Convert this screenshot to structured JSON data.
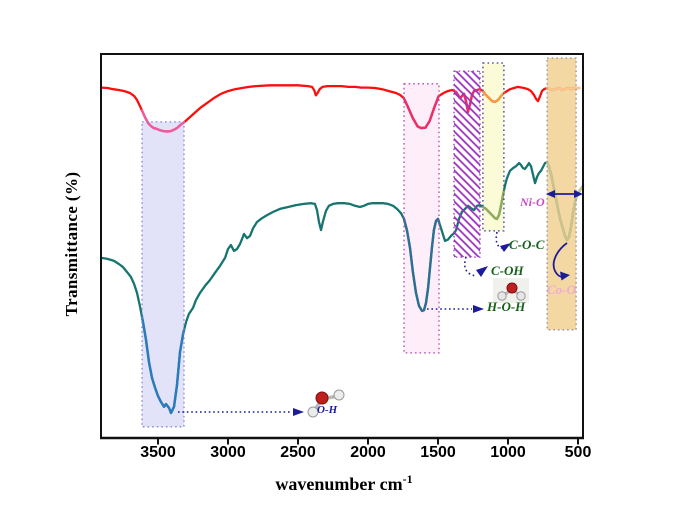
{
  "figure": {
    "ylabel": "Transmittance (%)",
    "xlabel_main": "wavenumber cm",
    "xlabel_sup": "-1"
  },
  "colors": {
    "red_spectrum": "#fb0e0e",
    "teal_spectrum": "#177570",
    "arrow_navy": "#1c1c99",
    "label_green": "#17611c",
    "label_magenta": "#cb4ac9",
    "label_pale_pink": "#f0abd0"
  },
  "chart_data": {
    "type": "line",
    "title": "",
    "xlabel": "wavenumber cm-1",
    "ylabel": "Transmittance (%)",
    "x_axis_reversed": true,
    "grid": false,
    "legend": "none",
    "x_ticks": [
      3500,
      3000,
      2500,
      2000,
      1500,
      1000,
      500
    ],
    "xlim": [
      3910,
      460
    ],
    "ylim": [
      0,
      100
    ],
    "bands": [
      {
        "name": "O-H stretch",
        "from": 3614,
        "to": 3314,
        "t_top": 82.1,
        "t_bottom": 2.9,
        "fill": "#e2e3f8",
        "border": "#8585d0",
        "hatch": false
      },
      {
        "name": "H-O-H bend",
        "from": 1743,
        "to": 1493,
        "t_top": 92.0,
        "t_bottom": 22.1,
        "fill": "#fdeefa",
        "border": "#b04ab0",
        "hatch": false
      },
      {
        "name": "C-OH",
        "from": 1386,
        "to": 1200,
        "t_top": 95.3,
        "t_bottom": 47.0,
        "fill": "#ffffff",
        "border": "#9933bb",
        "hatch": true
      },
      {
        "name": "C-O-C",
        "from": 1179,
        "to": 1029,
        "t_top": 97.4,
        "t_bottom": 53.8,
        "fill": "#fbfbd8",
        "border": "#3b3b9e",
        "hatch": false
      },
      {
        "name": "metal-O",
        "from": 721,
        "to": 514,
        "t_top": 98.7,
        "t_bottom": 28.1,
        "fill": "#f3d8a3",
        "border": "#8f8fa3",
        "hatch": false
      }
    ],
    "series": [
      {
        "name": "red_spectrum",
        "color": "#fb0e0e",
        "points": [
          [
            3907,
            91
          ],
          [
            3860,
            90.9
          ],
          [
            3820,
            90.6
          ],
          [
            3780,
            90.4
          ],
          [
            3740,
            90.1
          ],
          [
            3700,
            89.6
          ],
          [
            3670,
            88.8
          ],
          [
            3650,
            87.8
          ],
          [
            3630,
            86.3
          ],
          [
            3610,
            84.7
          ],
          [
            3590,
            83.1
          ],
          [
            3570,
            81.8
          ],
          [
            3550,
            81
          ],
          [
            3530,
            80.5
          ],
          [
            3510,
            80.3
          ],
          [
            3490,
            80
          ],
          [
            3460,
            79.7
          ],
          [
            3435,
            79.6
          ],
          [
            3410,
            79.7
          ],
          [
            3390,
            80
          ],
          [
            3365,
            80.5
          ],
          [
            3340,
            81.3
          ],
          [
            3310,
            82.1
          ],
          [
            3280,
            83.1
          ],
          [
            3240,
            84.4
          ],
          [
            3200,
            85.7
          ],
          [
            3150,
            87
          ],
          [
            3100,
            88.3
          ],
          [
            3050,
            89.4
          ],
          [
            3000,
            90.1
          ],
          [
            2950,
            90.6
          ],
          [
            2900,
            90.9
          ],
          [
            2850,
            91.2
          ],
          [
            2800,
            91.4
          ],
          [
            2700,
            91.6
          ],
          [
            2600,
            91.6
          ],
          [
            2500,
            91.6
          ],
          [
            2430,
            91.4
          ],
          [
            2400,
            91.2
          ],
          [
            2385,
            90.4
          ],
          [
            2372,
            89
          ],
          [
            2360,
            89.6
          ],
          [
            2345,
            90.6
          ],
          [
            2325,
            91.2
          ],
          [
            2290,
            91.4
          ],
          [
            2240,
            91.4
          ],
          [
            2190,
            91.4
          ],
          [
            2140,
            91.2
          ],
          [
            2090,
            91.2
          ],
          [
            2050,
            91
          ],
          [
            2000,
            91
          ],
          [
            1950,
            90.9
          ],
          [
            1900,
            90.6
          ],
          [
            1850,
            90.1
          ],
          [
            1800,
            89.6
          ],
          [
            1770,
            89.1
          ],
          [
            1745,
            88.3
          ],
          [
            1715,
            86
          ],
          [
            1680,
            83.1
          ],
          [
            1645,
            80.9
          ],
          [
            1620,
            80.5
          ],
          [
            1590,
            80.6
          ],
          [
            1560,
            82.3
          ],
          [
            1525,
            86
          ],
          [
            1495,
            88.8
          ],
          [
            1460,
            89.6
          ],
          [
            1430,
            90.1
          ],
          [
            1400,
            90.4
          ],
          [
            1371,
            89.9
          ],
          [
            1357,
            89.1
          ],
          [
            1343,
            88.3
          ],
          [
            1329,
            88.8
          ],
          [
            1314,
            89.4
          ],
          [
            1300,
            87.5
          ],
          [
            1286,
            84.7
          ],
          [
            1271,
            86.8
          ],
          [
            1257,
            89.1
          ],
          [
            1243,
            90.1
          ],
          [
            1221,
            90.4
          ],
          [
            1200,
            90.6
          ],
          [
            1179,
            90.1
          ],
          [
            1157,
            89.1
          ],
          [
            1136,
            88.3
          ],
          [
            1114,
            87.5
          ],
          [
            1093,
            87.3
          ],
          [
            1071,
            87.8
          ],
          [
            1050,
            88.8
          ],
          [
            1029,
            89.6
          ],
          [
            1007,
            90.1
          ],
          [
            986,
            90.6
          ],
          [
            957,
            90.9
          ],
          [
            929,
            91.2
          ],
          [
            886,
            90.9
          ],
          [
            857,
            90.6
          ],
          [
            836,
            90.1
          ],
          [
            814,
            89.1
          ],
          [
            800,
            88.1
          ],
          [
            786,
            87.5
          ],
          [
            771,
            88.8
          ],
          [
            757,
            90.1
          ],
          [
            743,
            90.6
          ],
          [
            721,
            90.9
          ],
          [
            700,
            90.6
          ],
          [
            679,
            90.4
          ],
          [
            657,
            90.6
          ],
          [
            636,
            90.9
          ],
          [
            614,
            90.4
          ],
          [
            593,
            90.6
          ],
          [
            571,
            90.9
          ],
          [
            550,
            90.6
          ],
          [
            529,
            90.9
          ],
          [
            507,
            90.9
          ],
          [
            490,
            90.9
          ]
        ],
        "color_segments": [
          {
            "from": 3614,
            "to": 3314,
            "color": "#ef5aa0"
          },
          {
            "from": 1743,
            "to": 1493,
            "color": "#e8306a"
          },
          {
            "from": 1386,
            "to": 1200,
            "color": "#e8306a"
          },
          {
            "from": 1179,
            "to": 1029,
            "color": "#f59b40"
          },
          {
            "from": 721,
            "to": 460,
            "color": "#f9c68c"
          }
        ]
      },
      {
        "name": "teal_spectrum",
        "color": "#177570",
        "points": [
          [
            3907,
            46.8
          ],
          [
            3857,
            46.5
          ],
          [
            3814,
            46
          ],
          [
            3779,
            45.2
          ],
          [
            3750,
            44.4
          ],
          [
            3721,
            43.1
          ],
          [
            3693,
            41.8
          ],
          [
            3671,
            40
          ],
          [
            3650,
            37.7
          ],
          [
            3629,
            34.3
          ],
          [
            3607,
            30.1
          ],
          [
            3586,
            25.5
          ],
          [
            3564,
            19.7
          ],
          [
            3543,
            15.6
          ],
          [
            3521,
            13
          ],
          [
            3500,
            10.9
          ],
          [
            3479,
            9.4
          ],
          [
            3457,
            8.1
          ],
          [
            3443,
            8.8
          ],
          [
            3421,
            7.8
          ],
          [
            3407,
            6.5
          ],
          [
            3386,
            8.1
          ],
          [
            3364,
            13.8
          ],
          [
            3343,
            22.3
          ],
          [
            3321,
            27
          ],
          [
            3300,
            30.1
          ],
          [
            3279,
            32.2
          ],
          [
            3250,
            33.8
          ],
          [
            3229,
            35.8
          ],
          [
            3200,
            37.7
          ],
          [
            3164,
            39.5
          ],
          [
            3129,
            41
          ],
          [
            3093,
            42.9
          ],
          [
            3057,
            44.7
          ],
          [
            3021,
            46.8
          ],
          [
            3000,
            49.1
          ],
          [
            2979,
            50.1
          ],
          [
            2957,
            48.6
          ],
          [
            2936,
            49.1
          ],
          [
            2914,
            50.4
          ],
          [
            2886,
            53
          ],
          [
            2864,
            51.9
          ],
          [
            2843,
            52.5
          ],
          [
            2821,
            54.5
          ],
          [
            2793,
            56.1
          ],
          [
            2757,
            57.1
          ],
          [
            2721,
            57.9
          ],
          [
            2679,
            58.7
          ],
          [
            2629,
            59.5
          ],
          [
            2571,
            60
          ],
          [
            2514,
            60.5
          ],
          [
            2457,
            60.8
          ],
          [
            2407,
            61
          ],
          [
            2379,
            60.8
          ],
          [
            2364,
            59.2
          ],
          [
            2350,
            56.1
          ],
          [
            2336,
            54
          ],
          [
            2321,
            56.4
          ],
          [
            2300,
            59
          ],
          [
            2279,
            60.3
          ],
          [
            2250,
            60.8
          ],
          [
            2214,
            61
          ],
          [
            2171,
            61
          ],
          [
            2129,
            60.8
          ],
          [
            2093,
            60.3
          ],
          [
            2057,
            60
          ],
          [
            2029,
            60.3
          ],
          [
            2000,
            60.8
          ],
          [
            1971,
            61
          ],
          [
            1936,
            61
          ],
          [
            1893,
            61
          ],
          [
            1857,
            60.8
          ],
          [
            1821,
            60.3
          ],
          [
            1793,
            59.5
          ],
          [
            1764,
            58.4
          ],
          [
            1743,
            56.9
          ],
          [
            1721,
            53.8
          ],
          [
            1700,
            49.4
          ],
          [
            1679,
            43.1
          ],
          [
            1657,
            37.7
          ],
          [
            1636,
            34.3
          ],
          [
            1614,
            33
          ],
          [
            1600,
            33.2
          ],
          [
            1586,
            35.1
          ],
          [
            1571,
            39
          ],
          [
            1557,
            44.2
          ],
          [
            1543,
            49.6
          ],
          [
            1529,
            54
          ],
          [
            1514,
            56.4
          ],
          [
            1500,
            56.9
          ],
          [
            1470,
            53.5
          ],
          [
            1450,
            51.2
          ],
          [
            1430,
            51.5
          ],
          [
            1407,
            52.5
          ],
          [
            1386,
            53.2
          ],
          [
            1371,
            54
          ],
          [
            1350,
            56.9
          ],
          [
            1329,
            58.7
          ],
          [
            1307,
            59.5
          ],
          [
            1286,
            60.3
          ],
          [
            1264,
            59.7
          ],
          [
            1243,
            59.2
          ],
          [
            1221,
            60.3
          ],
          [
            1200,
            60.5
          ],
          [
            1179,
            60
          ],
          [
            1157,
            59.5
          ],
          [
            1136,
            58.7
          ],
          [
            1114,
            57.9
          ],
          [
            1093,
            57.1
          ],
          [
            1079,
            56.9
          ],
          [
            1064,
            57.9
          ],
          [
            1050,
            60.3
          ],
          [
            1036,
            63.1
          ],
          [
            1021,
            65.7
          ],
          [
            1007,
            67.5
          ],
          [
            986,
            69.4
          ],
          [
            964,
            70.1
          ],
          [
            943,
            70.6
          ],
          [
            921,
            71.4
          ],
          [
            907,
            70.9
          ],
          [
            893,
            70.1
          ],
          [
            879,
            69.9
          ],
          [
            864,
            70.6
          ],
          [
            850,
            71.4
          ],
          [
            836,
            70.6
          ],
          [
            821,
            68.3
          ],
          [
            807,
            66.2
          ],
          [
            793,
            67.8
          ],
          [
            779,
            68.8
          ],
          [
            764,
            69.4
          ],
          [
            750,
            70.4
          ],
          [
            736,
            71.4
          ],
          [
            721,
            71.7
          ],
          [
            707,
            70.4
          ],
          [
            693,
            68.6
          ],
          [
            679,
            66.2
          ],
          [
            664,
            63.4
          ],
          [
            650,
            60.8
          ],
          [
            629,
            57.1
          ],
          [
            607,
            54.3
          ],
          [
            593,
            52.5
          ],
          [
            579,
            51.4
          ],
          [
            564,
            52.2
          ],
          [
            550,
            54.8
          ],
          [
            536,
            58.4
          ],
          [
            521,
            61.3
          ],
          [
            507,
            63.1
          ],
          [
            486,
            64.4
          ],
          [
            464,
            65.5
          ]
        ],
        "color_segments": [
          {
            "from": 3614,
            "to": 3314,
            "color": "#2b7abc"
          },
          {
            "from": 1743,
            "to": 1493,
            "color": "#2e6f93"
          },
          {
            "from": 1179,
            "to": 1029,
            "color": "#92ac5c"
          },
          {
            "from": 721,
            "to": 460,
            "color": "#ccc48c"
          }
        ]
      }
    ],
    "annotations": [
      {
        "label": "O-H",
        "wn": 3407,
        "color": "#1c1c99"
      },
      {
        "label": "H-O-H",
        "wn": 1614,
        "color": "#17611c"
      },
      {
        "label": "C-OH",
        "wn": 1286,
        "color": "#17611c"
      },
      {
        "label": "C-O-C",
        "wn": 1093,
        "color": "#17611c"
      },
      {
        "label": "Ni-O",
        "wn": 600,
        "color": "#cb4ac9"
      },
      {
        "label": "Co-O",
        "wn": 571,
        "color": "#f0abd0"
      }
    ]
  }
}
